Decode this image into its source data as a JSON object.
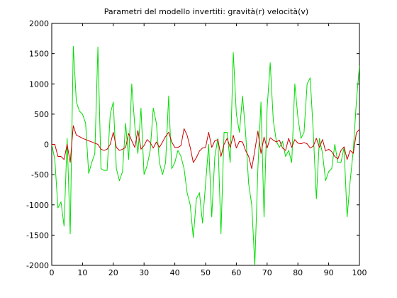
{
  "chart_data": {
    "type": "line",
    "title": "Parametri del modello invertiti: gravità(r) velocità(v)",
    "xlabel": "",
    "ylabel": "",
    "xlim": [
      0,
      100
    ],
    "ylim": [
      -2000,
      2000
    ],
    "xticks": [
      0,
      10,
      20,
      30,
      40,
      50,
      60,
      70,
      80,
      90,
      100
    ],
    "yticks": [
      -2000,
      -1500,
      -1000,
      -500,
      0,
      500,
      1000,
      1500,
      2000
    ],
    "grid": false,
    "series": [
      {
        "color": "#cc0000",
        "x": [
          0,
          1,
          2,
          3,
          4,
          5,
          6,
          7,
          8,
          9,
          10,
          11,
          12,
          13,
          14,
          15,
          16,
          17,
          18,
          19,
          20,
          21,
          22,
          23,
          24,
          25,
          26,
          27,
          28,
          29,
          30,
          31,
          32,
          33,
          34,
          35,
          36,
          37,
          38,
          39,
          40,
          41,
          42,
          43,
          44,
          45,
          46,
          47,
          48,
          49,
          50,
          51,
          52,
          53,
          54,
          55,
          56,
          57,
          58,
          59,
          60,
          61,
          62,
          63,
          64,
          65,
          66,
          67,
          68,
          69,
          70,
          71,
          72,
          73,
          74,
          75,
          76,
          77,
          78,
          79,
          80,
          81,
          82,
          83,
          84,
          85,
          86,
          87,
          88,
          89,
          90,
          91,
          92,
          93,
          94,
          95,
          96,
          97,
          98,
          99,
          100
        ],
        "y": [
          0,
          0,
          -200,
          -200,
          -250,
          0,
          -300,
          310,
          150,
          130,
          100,
          80,
          60,
          40,
          20,
          0,
          -80,
          -100,
          -80,
          0,
          200,
          -50,
          -100,
          -80,
          -50,
          180,
          60,
          -50,
          230,
          -80,
          -20,
          80,
          30,
          -60,
          40,
          -50,
          40,
          130,
          200,
          40,
          -50,
          -50,
          -20,
          260,
          150,
          -50,
          -300,
          -220,
          -110,
          -60,
          -50,
          200,
          -50,
          60,
          80,
          -200,
          0,
          100,
          -50,
          150,
          -60,
          50,
          40,
          -100,
          -200,
          -400,
          -100,
          220,
          -150,
          120,
          -60,
          110,
          70,
          40,
          70,
          -60,
          -100,
          100,
          -50,
          80,
          20,
          10,
          30,
          10,
          -60,
          -30,
          100,
          -50,
          80,
          -110,
          -80,
          -120,
          -200,
          -240,
          -100,
          -40,
          -250,
          -100,
          -150,
          190,
          250
        ]
      },
      {
        "color": "#00dd00",
        "x": [
          0,
          1,
          2,
          3,
          4,
          5,
          6,
          7,
          8,
          9,
          10,
          11,
          12,
          13,
          14,
          15,
          16,
          17,
          18,
          19,
          20,
          21,
          22,
          23,
          24,
          25,
          26,
          27,
          28,
          29,
          30,
          31,
          32,
          33,
          34,
          35,
          36,
          37,
          38,
          39,
          40,
          41,
          42,
          43,
          44,
          45,
          46,
          47,
          48,
          49,
          50,
          51,
          52,
          53,
          54,
          55,
          56,
          57,
          58,
          59,
          60,
          61,
          62,
          63,
          64,
          65,
          66,
          67,
          68,
          69,
          70,
          71,
          72,
          73,
          74,
          75,
          76,
          77,
          78,
          79,
          80,
          81,
          82,
          83,
          84,
          85,
          86,
          87,
          88,
          89,
          90,
          91,
          92,
          93,
          94,
          95,
          96,
          97,
          98,
          99,
          100
        ],
        "y": [
          0,
          -250,
          -1050,
          -950,
          -1350,
          100,
          -1480,
          1620,
          700,
          550,
          500,
          350,
          -480,
          -300,
          -150,
          1610,
          -400,
          -430,
          -430,
          500,
          700,
          -400,
          -600,
          -450,
          350,
          -250,
          1000,
          300,
          -150,
          600,
          -500,
          -350,
          -100,
          600,
          350,
          -300,
          -500,
          -300,
          800,
          -400,
          -300,
          -100,
          -200,
          -400,
          -800,
          -1000,
          -1540,
          -900,
          -800,
          -1300,
          -650,
          0,
          -1200,
          -200,
          100,
          -1480,
          200,
          200,
          -300,
          1520,
          500,
          200,
          800,
          200,
          -650,
          -1000,
          -2000,
          -400,
          700,
          -1200,
          600,
          1350,
          400,
          50,
          -50,
          50,
          -200,
          -100,
          -300,
          1000,
          450,
          100,
          200,
          1000,
          1100,
          200,
          -900,
          100,
          -150,
          -600,
          -450,
          -400,
          0,
          -300,
          -300,
          -50,
          -1200,
          -600,
          -100,
          700,
          1300
        ]
      }
    ]
  }
}
